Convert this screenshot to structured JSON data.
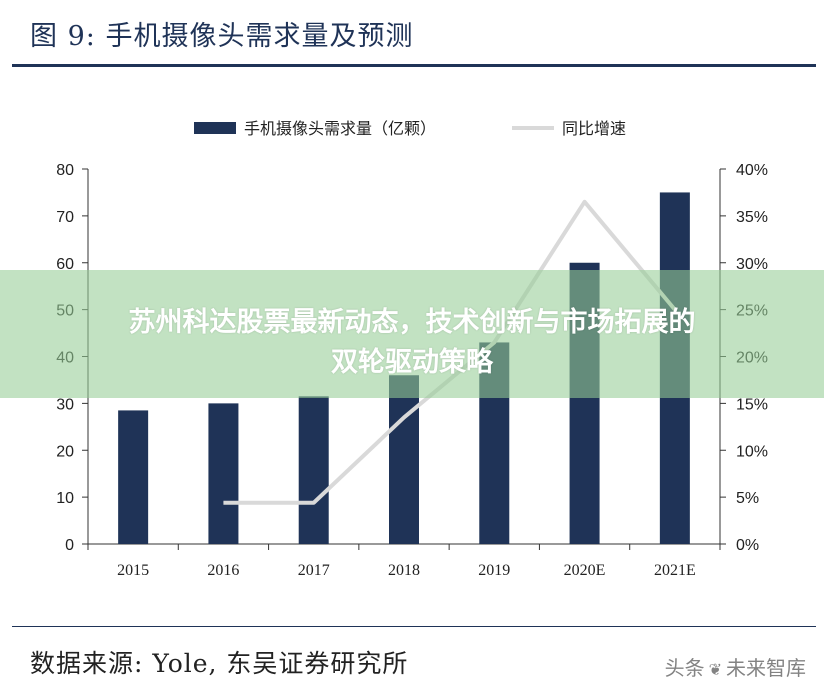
{
  "figure_title": "图 9:  手机摄像头需求量及预测",
  "source_text": "数据来源: Yole, 东吴证券研究所",
  "overlay": {
    "line1": "苏州科达股票最新动态，技术创新与市场拓展的",
    "line2": "双轮驱动策略"
  },
  "watermark": {
    "prefix": "头条",
    "icon": "paw-icon",
    "name": "未来智库"
  },
  "colors": {
    "bar": "#1f3357",
    "line": "#d9d9d9",
    "axis": "#333333",
    "title": "#1f3357"
  },
  "chart_data": {
    "type": "bar",
    "categories": [
      "2015",
      "2016",
      "2017",
      "2018",
      "2019",
      "2020E",
      "2021E"
    ],
    "series": [
      {
        "name": "手机摄像头需求量（亿颗）",
        "type": "bar",
        "axis": "left",
        "values": [
          28.5,
          30,
          31.5,
          36,
          43,
          60,
          75
        ]
      },
      {
        "name": "同比增速",
        "type": "line",
        "axis": "right",
        "values": [
          null,
          4.4,
          4.4,
          13.5,
          21.5,
          36.5,
          25
        ]
      }
    ],
    "ylim": [
      0,
      80
    ],
    "y_ticks": [
      "0",
      "10",
      "20",
      "30",
      "40",
      "50",
      "60",
      "70",
      "80"
    ],
    "y2lim": [
      0,
      40
    ],
    "y2_ticks": [
      "0%",
      "5%",
      "10%",
      "15%",
      "20%",
      "25%",
      "30%",
      "35%",
      "40%"
    ],
    "legend_position": "top-center",
    "grid": false
  }
}
